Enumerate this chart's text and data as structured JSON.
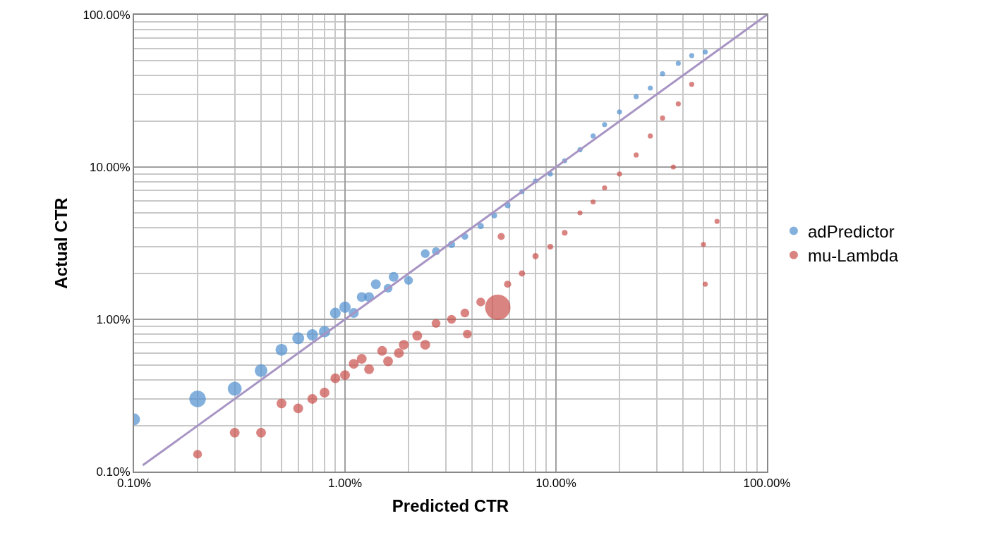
{
  "chart_data": {
    "type": "bubble",
    "xlabel": "Predicted CTR",
    "ylabel": "Actual CTR",
    "log": "xy",
    "grid": true,
    "legend": "right",
    "marker": "circle",
    "xlim": [
      0.1,
      100
    ],
    "ylim": [
      0.1,
      100
    ],
    "xticks": [
      {
        "value": 0.1,
        "label": "0.10%"
      },
      {
        "value": 1,
        "label": "1.00%"
      },
      {
        "value": 10,
        "label": "10.00%"
      },
      {
        "value": 100,
        "label": "100.00%"
      }
    ],
    "yticks": [
      {
        "value": 0.1,
        "label": "0.10%"
      },
      {
        "value": 1,
        "label": "1.00%"
      },
      {
        "value": 10,
        "label": "10.00%"
      },
      {
        "value": 100,
        "label": "100.00%"
      }
    ],
    "series": [
      {
        "name": "adPredictor",
        "color": "#4f8fcf",
        "x": [
          0.1,
          0.2,
          0.3,
          0.4,
          0.5,
          0.6,
          0.7,
          0.8,
          0.9,
          1.0,
          1.1,
          1.2,
          1.3,
          1.4,
          1.6,
          1.7,
          2.0,
          2.4,
          2.7,
          3.2,
          3.7,
          4.4,
          5.1,
          5.9,
          6.9,
          8.0,
          9.4,
          11,
          13,
          15,
          17,
          20,
          24,
          28,
          32,
          38,
          44,
          51
        ],
        "values": [
          0.22,
          0.3,
          0.35,
          0.46,
          0.63,
          0.75,
          0.79,
          0.83,
          1.1,
          1.2,
          1.1,
          1.4,
          1.4,
          1.7,
          1.6,
          1.9,
          1.8,
          2.7,
          2.8,
          3.1,
          3.5,
          4.1,
          4.8,
          5.6,
          6.9,
          8.1,
          9.0,
          11,
          13,
          16,
          19,
          23,
          29,
          33,
          41,
          48,
          54,
          57
        ],
        "sizes": [
          0.22,
          0.42,
          0.3,
          0.25,
          0.22,
          0.22,
          0.2,
          0.2,
          0.18,
          0.2,
          0.15,
          0.15,
          0.15,
          0.15,
          0.12,
          0.15,
          0.12,
          0.12,
          0.1,
          0.08,
          0.07,
          0.06,
          0.05,
          0.05,
          0.04,
          0.04,
          0.04,
          0.04,
          0.04,
          0.04,
          0.04,
          0.04,
          0.04,
          0.04,
          0.04,
          0.04,
          0.04,
          0.04
        ]
      },
      {
        "name": "mu-Lambda",
        "color": "#c9504c",
        "x": [
          0.2,
          0.3,
          0.4,
          0.5,
          0.6,
          0.7,
          0.8,
          0.9,
          1.0,
          1.1,
          1.2,
          1.3,
          1.5,
          1.6,
          1.8,
          1.9,
          2.2,
          2.4,
          2.7,
          3.2,
          3.7,
          3.8,
          4.4,
          5.3,
          5.5,
          5.9,
          6.9,
          8.0,
          9.4,
          11,
          13,
          15,
          17,
          20,
          24,
          28,
          32,
          36,
          38,
          44,
          50,
          51,
          58
        ],
        "values": [
          0.13,
          0.18,
          0.18,
          0.28,
          0.26,
          0.3,
          0.33,
          0.41,
          0.43,
          0.51,
          0.55,
          0.47,
          0.62,
          0.53,
          0.6,
          0.68,
          0.78,
          0.68,
          0.94,
          1.0,
          1.1,
          0.8,
          1.3,
          1.2,
          3.5,
          1.7,
          2.0,
          2.6,
          3.0,
          3.7,
          5.0,
          5.9,
          7.3,
          9.0,
          12,
          16,
          21,
          10,
          26,
          35,
          3.1,
          1.7,
          4.4
        ],
        "sizes": [
          0.12,
          0.15,
          0.15,
          0.15,
          0.15,
          0.15,
          0.15,
          0.15,
          0.15,
          0.15,
          0.15,
          0.15,
          0.15,
          0.15,
          0.15,
          0.15,
          0.15,
          0.15,
          0.12,
          0.12,
          0.12,
          0.12,
          0.12,
          1,
          0.08,
          0.08,
          0.06,
          0.06,
          0.05,
          0.05,
          0.04,
          0.04,
          0.04,
          0.04,
          0.04,
          0.04,
          0.04,
          0.04,
          0.04,
          0.04,
          0.04,
          0.04,
          0.04
        ]
      },
      {
        "type": "line",
        "color": "#a794c4",
        "marker": "none",
        "x": [
          0.11,
          100
        ],
        "values": [
          0.11,
          100
        ]
      }
    ]
  }
}
